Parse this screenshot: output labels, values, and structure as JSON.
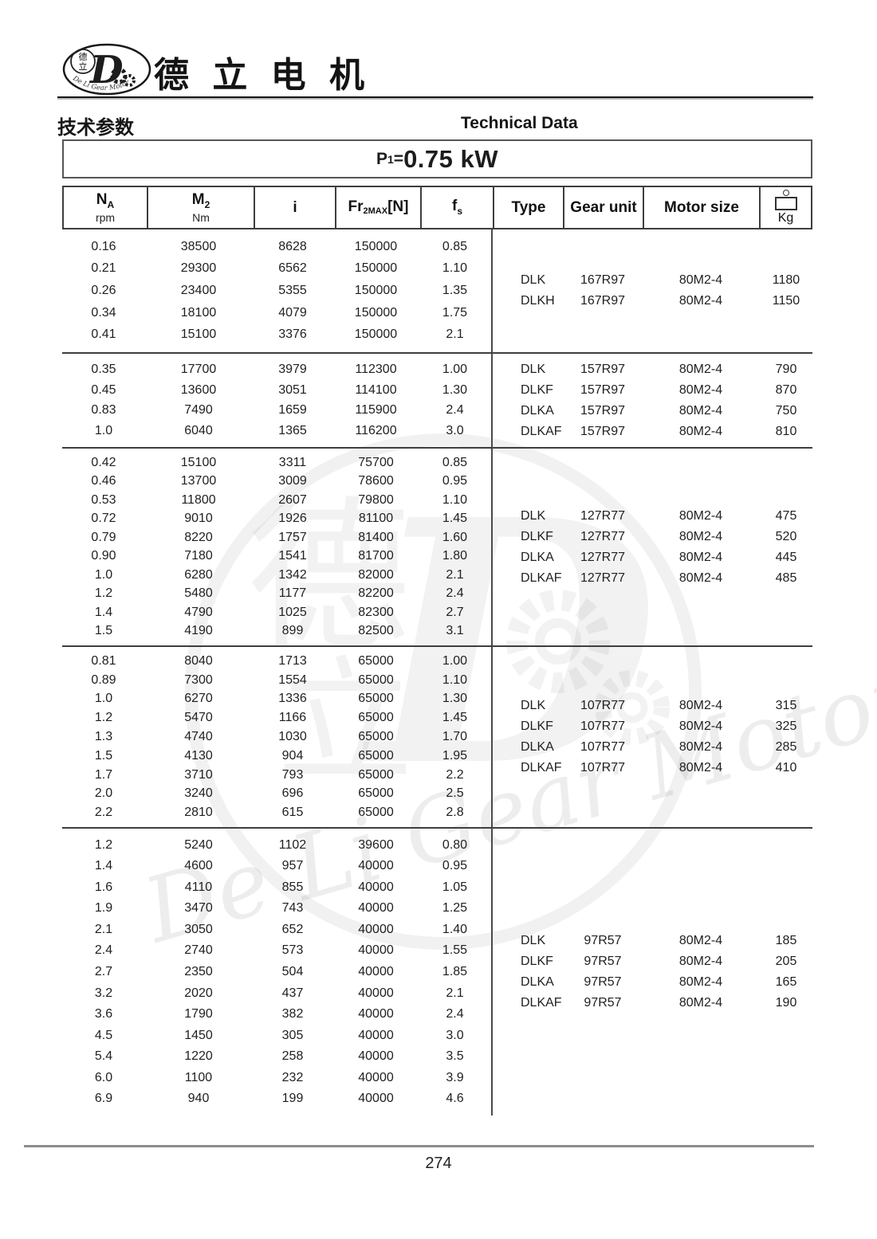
{
  "header": {
    "brand_cn": "德 立 电 机",
    "logo": {
      "char_top": "德",
      "char_bottom": "立",
      "letter": "D",
      "text_en": "De Li Gear Motor"
    },
    "section_title_cn": "技术参数",
    "section_title_en": "Technical Data"
  },
  "power": {
    "prefix": "P",
    "sub": "1",
    "eq": "=",
    "value": "0.75 kW"
  },
  "table": {
    "headers": {
      "na": {
        "label": "N",
        "sub": "A",
        "unit": "rpm"
      },
      "m2": {
        "label": "M",
        "sub": "2",
        "unit": "Nm"
      },
      "i": {
        "label": "i"
      },
      "fr": {
        "label": "Fr",
        "sub": "2MAX",
        "suffix": "[N]"
      },
      "fs": {
        "label": "f",
        "sub": "s"
      },
      "type": {
        "label": "Type"
      },
      "gear_unit": {
        "label": "Gear unit"
      },
      "motor_size": {
        "label": "Motor size"
      },
      "weight": {
        "label": "Kg"
      }
    },
    "blocks": [
      {
        "rows": [
          [
            "0.16",
            "38500",
            "8628",
            "150000",
            "0.85"
          ],
          [
            "0.21",
            "29300",
            "6562",
            "150000",
            "1.10"
          ],
          [
            "0.26",
            "23400",
            "5355",
            "150000",
            "1.35"
          ],
          [
            "0.34",
            "18100",
            "4079",
            "150000",
            "1.75"
          ],
          [
            "0.41",
            "15100",
            "3376",
            "150000",
            "2.1"
          ]
        ],
        "types": [
          [
            "DLK",
            "167R97",
            "80M2-4",
            "1180"
          ],
          [
            "DLKH",
            "167R97",
            "80M2-4",
            "1150"
          ]
        ]
      },
      {
        "rows": [
          [
            "0.35",
            "17700",
            "3979",
            "112300",
            "1.00"
          ],
          [
            "0.45",
            "13600",
            "3051",
            "114100",
            "1.30"
          ],
          [
            "0.83",
            "7490",
            "1659",
            "115900",
            "2.4"
          ],
          [
            "1.0",
            "6040",
            "1365",
            "116200",
            "3.0"
          ]
        ],
        "types": [
          [
            "DLK",
            "157R97",
            "80M2-4",
            "790"
          ],
          [
            "DLKF",
            "157R97",
            "80M2-4",
            "870"
          ],
          [
            "DLKA",
            "157R97",
            "80M2-4",
            "750"
          ],
          [
            "DLKAF",
            "157R97",
            "80M2-4",
            "810"
          ]
        ]
      },
      {
        "rows": [
          [
            "0.42",
            "15100",
            "3311",
            "75700",
            "0.85"
          ],
          [
            "0.46",
            "13700",
            "3009",
            "78600",
            "0.95"
          ],
          [
            "0.53",
            "11800",
            "2607",
            "79800",
            "1.10"
          ],
          [
            "0.72",
            "9010",
            "1926",
            "81100",
            "1.45"
          ],
          [
            "0.79",
            "8220",
            "1757",
            "81400",
            "1.60"
          ],
          [
            "0.90",
            "7180",
            "1541",
            "81700",
            "1.80"
          ],
          [
            "1.0",
            "6280",
            "1342",
            "82000",
            "2.1"
          ],
          [
            "1.2",
            "5480",
            "1177",
            "82200",
            "2.4"
          ],
          [
            "1.4",
            "4790",
            "1025",
            "82300",
            "2.7"
          ],
          [
            "1.5",
            "4190",
            "899",
            "82500",
            "3.1"
          ]
        ],
        "types": [
          [
            "DLK",
            "127R77",
            "80M2-4",
            "475"
          ],
          [
            "DLKF",
            "127R77",
            "80M2-4",
            "520"
          ],
          [
            "DLKA",
            "127R77",
            "80M2-4",
            "445"
          ],
          [
            "DLKAF",
            "127R77",
            "80M2-4",
            "485"
          ]
        ]
      },
      {
        "rows": [
          [
            "0.81",
            "8040",
            "1713",
            "65000",
            "1.00"
          ],
          [
            "0.89",
            "7300",
            "1554",
            "65000",
            "1.10"
          ],
          [
            "1.0",
            "6270",
            "1336",
            "65000",
            "1.30"
          ],
          [
            "1.2",
            "5470",
            "1166",
            "65000",
            "1.45"
          ],
          [
            "1.3",
            "4740",
            "1030",
            "65000",
            "1.70"
          ],
          [
            "1.5",
            "4130",
            "904",
            "65000",
            "1.95"
          ],
          [
            "1.7",
            "3710",
            "793",
            "65000",
            "2.2"
          ],
          [
            "2.0",
            "3240",
            "696",
            "65000",
            "2.5"
          ],
          [
            "2.2",
            "2810",
            "615",
            "65000",
            "2.8"
          ]
        ],
        "types": [
          [
            "DLK",
            "107R77",
            "80M2-4",
            "315"
          ],
          [
            "DLKF",
            "107R77",
            "80M2-4",
            "325"
          ],
          [
            "DLKA",
            "107R77",
            "80M2-4",
            "285"
          ],
          [
            "DLKAF",
            "107R77",
            "80M2-4",
            "410"
          ]
        ]
      },
      {
        "rows": [
          [
            "1.2",
            "5240",
            "1102",
            "39600",
            "0.80"
          ],
          [
            "1.4",
            "4600",
            "957",
            "40000",
            "0.95"
          ],
          [
            "1.6",
            "4110",
            "855",
            "40000",
            "1.05"
          ],
          [
            "1.9",
            "3470",
            "743",
            "40000",
            "1.25"
          ],
          [
            "2.1",
            "3050",
            "652",
            "40000",
            "1.40"
          ],
          [
            "2.4",
            "2740",
            "573",
            "40000",
            "1.55"
          ],
          [
            "2.7",
            "2350",
            "504",
            "40000",
            "1.85"
          ],
          [
            "3.2",
            "2020",
            "437",
            "40000",
            "2.1"
          ],
          [
            "3.6",
            "1790",
            "382",
            "40000",
            "2.4"
          ],
          [
            "4.5",
            "1450",
            "305",
            "40000",
            "3.0"
          ],
          [
            "5.4",
            "1220",
            "258",
            "40000",
            "3.5"
          ],
          [
            "6.0",
            "1100",
            "232",
            "40000",
            "3.9"
          ],
          [
            "6.9",
            "940",
            "199",
            "40000",
            "4.6"
          ]
        ],
        "types": [
          [
            "DLK",
            "97R57",
            "80M2-4",
            "185"
          ],
          [
            "DLKF",
            "97R57",
            "80M2-4",
            "205"
          ],
          [
            "DLKA",
            "97R57",
            "80M2-4",
            "165"
          ],
          [
            "DLKAF",
            "97R57",
            "80M2-4",
            "190"
          ]
        ]
      }
    ]
  },
  "watermark": {
    "char_top": "德",
    "char_bottom": "立",
    "letter": "D",
    "text": "De Li Gear Motor"
  },
  "footer": {
    "page_number": "274"
  }
}
